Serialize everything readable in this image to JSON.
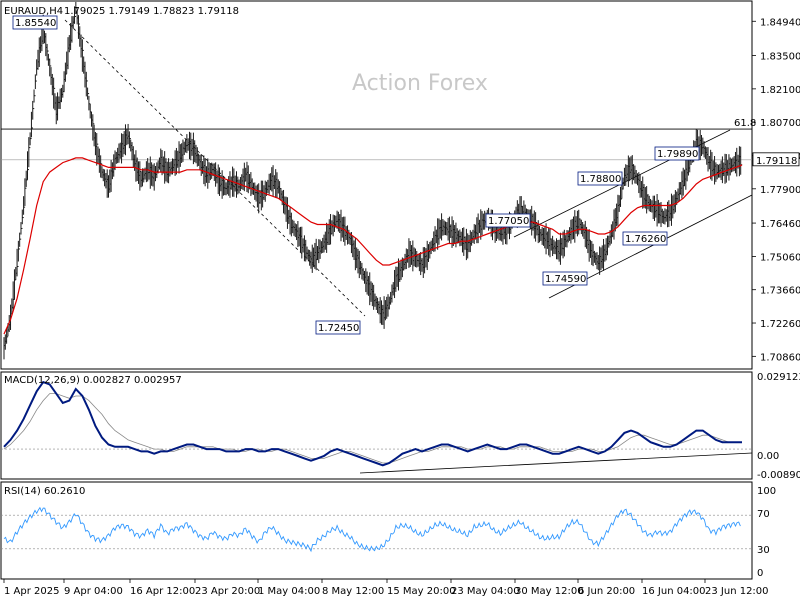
{
  "header": {
    "symbol": "EURAUD,H4",
    "quote": "1.79025 1.79149 1.78823 1.79118"
  },
  "watermark": "Action Forex",
  "colors": {
    "price": "#1a1a1a",
    "ma": "#dd0000",
    "macd": "#001a80",
    "macd_signal": "#888888",
    "rsi": "#3399ff",
    "annotation_border": "#001a80",
    "last_price_bg": "#ffffff"
  },
  "chart_data": [
    {
      "type": "line",
      "name": "price",
      "title": "EURAUD,H4",
      "ylim": [
        1.7037,
        1.8575
      ],
      "y_ticks": [
        "1.84940",
        "1.83500",
        "1.82100",
        "1.80700",
        "1.79300",
        "1.77900",
        "1.76460",
        "1.75060",
        "1.73660",
        "1.72260",
        "1.70860"
      ],
      "x_ticks": [
        "1 Apr 2025",
        "9 Apr 04:00",
        "16 Apr 12:00",
        "23 Apr 20:00",
        "1 May 04:00",
        "8 May 12:00",
        "15 May 20:00",
        "23 May 04:00",
        "30 May 12:00",
        "6 Jun 20:00",
        "16 Jun 04:00",
        "23 Jun 12:00"
      ],
      "last_price": "1.79118",
      "close": [
        1.712,
        1.725,
        1.748,
        1.772,
        1.8,
        1.83,
        1.846,
        1.83,
        1.812,
        1.82,
        1.84,
        1.855,
        1.835,
        1.815,
        1.798,
        1.786,
        1.78,
        1.791,
        1.796,
        1.802,
        1.79,
        1.783,
        1.787,
        1.784,
        1.791,
        1.786,
        1.789,
        1.793,
        1.798,
        1.796,
        1.79,
        1.785,
        1.787,
        1.782,
        1.779,
        1.782,
        1.78,
        1.785,
        1.78,
        1.775,
        1.778,
        1.783,
        1.78,
        1.772,
        1.764,
        1.76,
        1.754,
        1.749,
        1.752,
        1.756,
        1.762,
        1.766,
        1.762,
        1.758,
        1.75,
        1.743,
        1.737,
        1.731,
        1.726,
        1.731,
        1.741,
        1.746,
        1.752,
        1.75,
        1.747,
        1.752,
        1.758,
        1.763,
        1.762,
        1.76,
        1.758,
        1.755,
        1.76,
        1.764,
        1.767,
        1.763,
        1.76,
        1.762,
        1.766,
        1.77,
        1.768,
        1.765,
        1.76,
        1.758,
        1.755,
        1.753,
        1.757,
        1.762,
        1.765,
        1.76,
        1.752,
        1.748,
        1.752,
        1.76,
        1.77,
        1.784,
        1.788,
        1.783,
        1.776,
        1.772,
        1.77,
        1.767,
        1.769,
        1.775,
        1.782,
        1.79,
        1.798,
        1.797,
        1.79,
        1.786,
        1.787,
        1.788,
        1.79,
        1.791
      ],
      "ma": [
        1.718,
        1.724,
        1.733,
        1.745,
        1.758,
        1.772,
        1.782,
        1.786,
        1.788,
        1.79,
        1.791,
        1.792,
        1.792,
        1.791,
        1.79,
        1.789,
        1.788,
        1.788,
        1.788,
        1.788,
        1.788,
        1.787,
        1.787,
        1.786,
        1.786,
        1.786,
        1.786,
        1.786,
        1.787,
        1.787,
        1.787,
        1.786,
        1.785,
        1.784,
        1.783,
        1.782,
        1.781,
        1.78,
        1.779,
        1.778,
        1.777,
        1.776,
        1.775,
        1.773,
        1.771,
        1.769,
        1.767,
        1.765,
        1.764,
        1.764,
        1.764,
        1.763,
        1.762,
        1.76,
        1.758,
        1.755,
        1.752,
        1.749,
        1.747,
        1.747,
        1.748,
        1.749,
        1.75,
        1.751,
        1.752,
        1.753,
        1.754,
        1.755,
        1.756,
        1.756,
        1.757,
        1.757,
        1.758,
        1.759,
        1.76,
        1.761,
        1.762,
        1.763,
        1.764,
        1.765,
        1.765,
        1.765,
        1.764,
        1.763,
        1.762,
        1.76,
        1.76,
        1.761,
        1.762,
        1.762,
        1.761,
        1.76,
        1.76,
        1.761,
        1.763,
        1.766,
        1.769,
        1.771,
        1.772,
        1.772,
        1.772,
        1.772,
        1.772,
        1.773,
        1.775,
        1.778,
        1.781,
        1.783,
        1.784,
        1.785,
        1.786,
        1.787,
        1.788,
        1.789
      ],
      "hlines": [
        {
          "value": 1.8041,
          "label": "61.8"
        }
      ],
      "annotations": [
        "1.85540",
        "1.72450",
        "1.77050",
        "1.74590",
        "1.78800",
        "1.76260",
        "1.79890"
      ]
    },
    {
      "type": "line",
      "name": "macd",
      "title": "MACD(12,26,9) 0.002827 0.002957",
      "y_ticks": [
        "0.029123",
        "0.00",
        "-0.008901"
      ],
      "ylim": [
        -0.0125,
        0.0325
      ],
      "series": [
        {
          "name": "MACD",
          "values": [
            0.001,
            0.004,
            0.008,
            0.013,
            0.019,
            0.025,
            0.029,
            0.028,
            0.024,
            0.02,
            0.021,
            0.026,
            0.023,
            0.017,
            0.01,
            0.005,
            0.002,
            0.001,
            0.001,
            0.001,
            0.0,
            -0.001,
            -0.001,
            -0.002,
            -0.001,
            -0.001,
            0.0,
            0.001,
            0.002,
            0.002,
            0.001,
            0.0,
            0.0,
            0.0,
            -0.001,
            -0.001,
            -0.001,
            0.0,
            0.0,
            -0.001,
            -0.001,
            0.0,
            0.0,
            -0.001,
            -0.002,
            -0.003,
            -0.004,
            -0.005,
            -0.004,
            -0.003,
            -0.001,
            0.0,
            -0.001,
            -0.002,
            -0.003,
            -0.004,
            -0.005,
            -0.006,
            -0.007,
            -0.006,
            -0.004,
            -0.002,
            -0.001,
            0.0,
            -0.001,
            0.0,
            0.001,
            0.002,
            0.002,
            0.001,
            0.0,
            -0.001,
            0.0,
            0.001,
            0.002,
            0.001,
            0.0,
            0.0,
            0.001,
            0.002,
            0.002,
            0.001,
            0.0,
            -0.001,
            -0.002,
            -0.002,
            -0.001,
            0.0,
            0.001,
            0.0,
            -0.001,
            -0.002,
            -0.001,
            0.001,
            0.004,
            0.007,
            0.008,
            0.007,
            0.005,
            0.003,
            0.002,
            0.001,
            0.001,
            0.002,
            0.004,
            0.006,
            0.008,
            0.008,
            0.006,
            0.004,
            0.003,
            0.003,
            0.003,
            0.003
          ]
        },
        {
          "name": "Signal",
          "values": [
            0.0,
            0.002,
            0.005,
            0.008,
            0.012,
            0.017,
            0.021,
            0.024,
            0.024,
            0.023,
            0.022,
            0.023,
            0.023,
            0.021,
            0.018,
            0.015,
            0.011,
            0.008,
            0.006,
            0.004,
            0.003,
            0.002,
            0.001,
            0.0,
            0.0,
            -0.001,
            -0.001,
            0.0,
            0.001,
            0.001,
            0.001,
            0.001,
            0.001,
            0.0,
            0.0,
            0.0,
            -0.001,
            -0.001,
            0.0,
            0.0,
            -0.001,
            -0.001,
            0.0,
            0.0,
            -0.001,
            -0.002,
            -0.003,
            -0.004,
            -0.004,
            -0.004,
            -0.003,
            -0.002,
            -0.001,
            -0.001,
            -0.002,
            -0.003,
            -0.004,
            -0.005,
            -0.006,
            -0.006,
            -0.005,
            -0.004,
            -0.003,
            -0.002,
            -0.001,
            -0.001,
            0.0,
            0.001,
            0.001,
            0.001,
            0.001,
            0.0,
            0.0,
            0.0,
            0.001,
            0.001,
            0.001,
            0.0,
            0.0,
            0.001,
            0.001,
            0.001,
            0.001,
            0.0,
            -0.001,
            -0.001,
            -0.001,
            -0.001,
            0.0,
            0.0,
            0.0,
            -0.001,
            -0.001,
            0.0,
            0.001,
            0.003,
            0.005,
            0.006,
            0.006,
            0.005,
            0.004,
            0.003,
            0.002,
            0.002,
            0.003,
            0.004,
            0.005,
            0.006,
            0.006,
            0.005,
            0.004,
            0.003,
            0.003,
            0.003
          ]
        }
      ]
    },
    {
      "type": "line",
      "name": "rsi",
      "title": "RSI(14) 60.2610",
      "ylim": [
        0,
        100
      ],
      "y_ticks": [
        "100",
        "70",
        "30",
        "0"
      ],
      "levels": [
        70,
        30
      ],
      "values": [
        42,
        38,
        50,
        60,
        68,
        75,
        78,
        70,
        62,
        55,
        62,
        72,
        60,
        48,
        42,
        40,
        46,
        55,
        58,
        56,
        48,
        45,
        52,
        46,
        58,
        48,
        54,
        55,
        60,
        52,
        45,
        42,
        50,
        44,
        42,
        48,
        46,
        54,
        45,
        38,
        50,
        56,
        48,
        40,
        38,
        36,
        34,
        30,
        40,
        45,
        52,
        55,
        48,
        44,
        36,
        32,
        30,
        30,
        33,
        42,
        55,
        58,
        56,
        50,
        46,
        52,
        58,
        60,
        56,
        52,
        50,
        46,
        56,
        58,
        60,
        52,
        48,
        54,
        58,
        62,
        55,
        50,
        44,
        42,
        44,
        44,
        55,
        62,
        62,
        50,
        38,
        36,
        46,
        58,
        70,
        76,
        70,
        60,
        50,
        46,
        50,
        48,
        50,
        60,
        68,
        74,
        74,
        66,
        52,
        50,
        56,
        58,
        60,
        60
      ]
    }
  ]
}
